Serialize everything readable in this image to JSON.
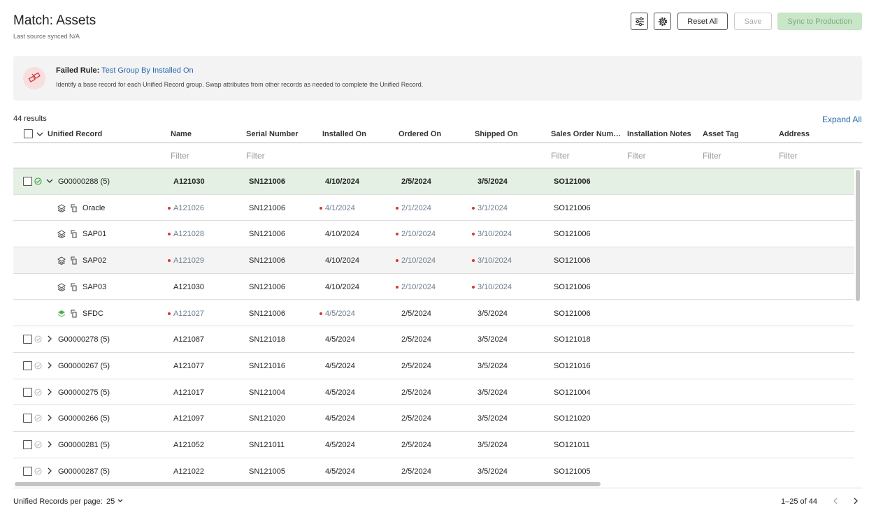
{
  "header": {
    "title": "Match: Assets",
    "subtitle": "Last source synced N/A"
  },
  "toolbar": {
    "reset": "Reset All",
    "save": "Save",
    "sync": "Sync to Production"
  },
  "banner": {
    "label": "Failed Rule:",
    "rule": "Test Group By Installed On",
    "description": "Identify a base record for each Unified Record group. Swap attributes from other records as needed to complete the Unified Record."
  },
  "results": {
    "count": "44 results",
    "expand": "Expand All"
  },
  "table": {
    "columns": [
      "Unified Record",
      "Name",
      "Serial Number",
      "Installed On",
      "Ordered On",
      "Shipped On",
      "Sales Order Num…",
      "Installation Notes",
      "Asset Tag",
      "Address"
    ],
    "filter": "Filter",
    "rows": [
      {
        "type": "group",
        "label": "G00000288 (5)",
        "expanded": true,
        "resolved": true,
        "cells": [
          "A121030",
          "SN121006",
          "4/10/2024",
          "2/5/2024",
          "3/5/2024",
          "SO121006"
        ]
      },
      {
        "type": "source",
        "label": "Oracle",
        "base": false,
        "cells": [
          "A121026",
          "SN121006",
          "4/1/2024",
          "2/1/2024",
          "3/1/2024",
          "SO121006"
        ],
        "conflicts": [
          true,
          false,
          true,
          true,
          true,
          false
        ]
      },
      {
        "type": "source",
        "label": "SAP01",
        "base": false,
        "cells": [
          "A121028",
          "SN121006",
          "4/10/2024",
          "2/10/2024",
          "3/10/2024",
          "SO121006"
        ],
        "conflicts": [
          true,
          false,
          false,
          true,
          true,
          false
        ]
      },
      {
        "type": "source",
        "label": "SAP02",
        "base": false,
        "highlight": true,
        "cells": [
          "A121029",
          "SN121006",
          "4/10/2024",
          "2/10/2024",
          "3/10/2024",
          "SO121006"
        ],
        "conflicts": [
          true,
          false,
          false,
          true,
          true,
          false
        ]
      },
      {
        "type": "source",
        "label": "SAP03",
        "base": false,
        "cells": [
          "A121030",
          "SN121006",
          "4/10/2024",
          "2/10/2024",
          "3/10/2024",
          "SO121006"
        ],
        "conflicts": [
          false,
          false,
          false,
          true,
          true,
          false
        ]
      },
      {
        "type": "source",
        "label": "SFDC",
        "base": true,
        "cells": [
          "A121027",
          "SN121006",
          "4/5/2024",
          "2/5/2024",
          "3/5/2024",
          "SO121006"
        ],
        "conflicts": [
          true,
          false,
          true,
          false,
          false,
          false
        ]
      },
      {
        "type": "group",
        "label": "G00000278 (5)",
        "expanded": false,
        "resolved": false,
        "cells": [
          "A121087",
          "SN121018",
          "4/5/2024",
          "2/5/2024",
          "3/5/2024",
          "SO121018"
        ]
      },
      {
        "type": "group",
        "label": "G00000267 (5)",
        "expanded": false,
        "resolved": false,
        "cells": [
          "A121077",
          "SN121016",
          "4/5/2024",
          "2/5/2024",
          "3/5/2024",
          "SO121016"
        ]
      },
      {
        "type": "group",
        "label": "G00000275 (5)",
        "expanded": false,
        "resolved": false,
        "cells": [
          "A121017",
          "SN121004",
          "4/5/2024",
          "2/5/2024",
          "3/5/2024",
          "SO121004"
        ]
      },
      {
        "type": "group",
        "label": "G00000266 (5)",
        "expanded": false,
        "resolved": false,
        "cells": [
          "A121097",
          "SN121020",
          "4/5/2024",
          "2/5/2024",
          "3/5/2024",
          "SO121020"
        ]
      },
      {
        "type": "group",
        "label": "G00000281 (5)",
        "expanded": false,
        "resolved": false,
        "cells": [
          "A121052",
          "SN121011",
          "4/5/2024",
          "2/5/2024",
          "3/5/2024",
          "SO121011"
        ]
      },
      {
        "type": "group",
        "label": "G00000287 (5)",
        "expanded": false,
        "resolved": false,
        "cells": [
          "A121022",
          "SN121005",
          "4/5/2024",
          "2/5/2024",
          "3/5/2024",
          "SO121005"
        ]
      }
    ]
  },
  "footer": {
    "per_page_label": "Unified Records per page:",
    "per_page": "25",
    "range": "1–25 of 44"
  }
}
